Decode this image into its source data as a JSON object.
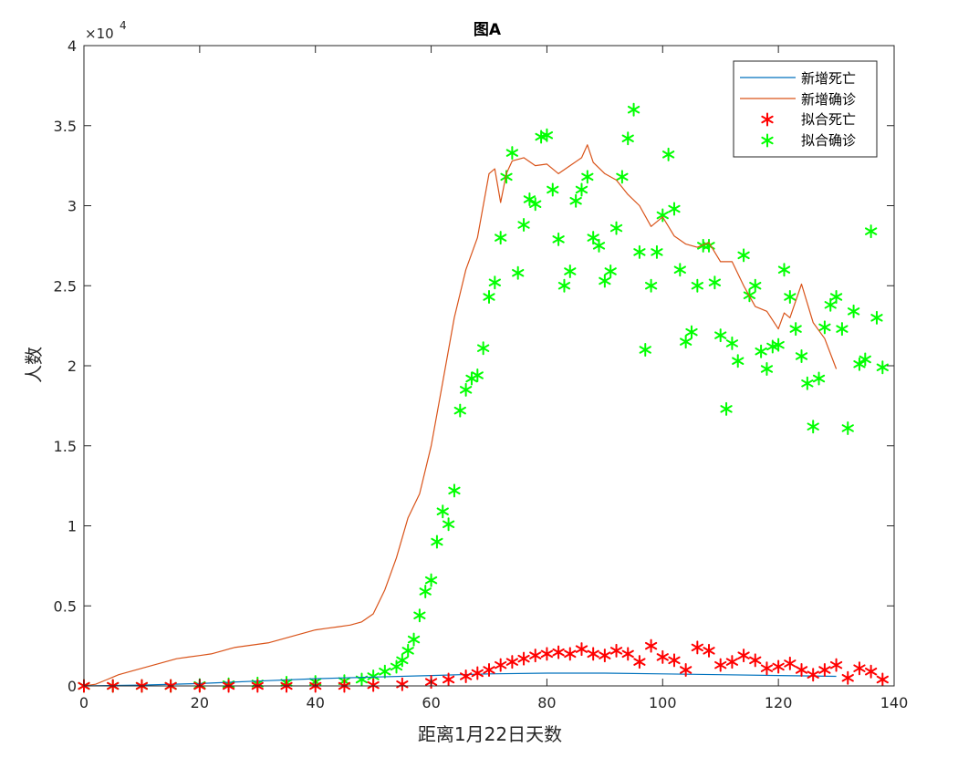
{
  "chart_data": {
    "type": "line",
    "title": "图A",
    "xlabel": "距离1月22日天数",
    "ylabel": "人数",
    "y_scale_label": "×10",
    "y_scale_exponent": "4",
    "xlim": [
      0,
      140
    ],
    "ylim": [
      0,
      40000
    ],
    "xticks": [
      0,
      20,
      40,
      60,
      80,
      100,
      120,
      140
    ],
    "yticks": [
      0,
      5000,
      10000,
      15000,
      20000,
      25000,
      30000,
      35000,
      40000
    ],
    "ytick_labels": [
      "0",
      "0.5",
      "1",
      "1.5",
      "2",
      "2.5",
      "3",
      "3.5",
      "4"
    ],
    "grid": false,
    "legend_position": "top-right",
    "series": [
      {
        "name": "新增死亡",
        "kind": "line",
        "color": "#0072BD",
        "x": [
          0,
          10,
          20,
          30,
          40,
          50,
          60,
          70,
          80,
          90,
          100,
          110,
          120,
          130
        ],
        "y": [
          0,
          50,
          150,
          300,
          450,
          550,
          650,
          750,
          800,
          800,
          750,
          700,
          650,
          600
        ]
      },
      {
        "name": "新增确诊",
        "kind": "line",
        "color": "#D95319",
        "x": [
          0,
          2,
          4,
          6,
          8,
          10,
          12,
          14,
          16,
          18,
          20,
          22,
          24,
          26,
          28,
          30,
          32,
          34,
          36,
          38,
          40,
          42,
          44,
          46,
          48,
          50,
          52,
          54,
          56,
          58,
          60,
          62,
          64,
          66,
          68,
          70,
          71,
          72,
          73,
          74,
          76,
          78,
          80,
          82,
          84,
          86,
          87,
          88,
          90,
          92,
          94,
          96,
          98,
          100,
          102,
          104,
          106,
          108,
          110,
          112,
          114,
          116,
          118,
          120,
          121,
          122,
          124,
          126,
          128,
          130
        ],
        "y": [
          0,
          100,
          400,
          700,
          900,
          1100,
          1300,
          1500,
          1700,
          1800,
          1900,
          2000,
          2200,
          2400,
          2500,
          2600,
          2700,
          2900,
          3100,
          3300,
          3500,
          3600,
          3700,
          3800,
          4000,
          4500,
          6000,
          8000,
          10500,
          12000,
          15000,
          19000,
          23000,
          26000,
          28000,
          32000,
          32300,
          30200,
          32000,
          32800,
          33000,
          32500,
          32600,
          32000,
          32500,
          33000,
          33800,
          32700,
          32000,
          31600,
          30700,
          30000,
          28700,
          29300,
          28100,
          27600,
          27400,
          27700,
          26500,
          26500,
          25000,
          23700,
          23400,
          22300,
          23300,
          23000,
          25100,
          22700,
          21700,
          19800
        ]
      },
      {
        "name": "拟合死亡",
        "kind": "markers",
        "marker": "*",
        "color": "#FF0000",
        "x": [
          0,
          5,
          10,
          15,
          20,
          25,
          30,
          35,
          40,
          45,
          50,
          55,
          60,
          63,
          66,
          68,
          70,
          72,
          74,
          76,
          78,
          80,
          82,
          84,
          86,
          88,
          90,
          92,
          94,
          96,
          98,
          100,
          102,
          104,
          106,
          108,
          110,
          112,
          114,
          116,
          118,
          120,
          122,
          124,
          126,
          128,
          130,
          132,
          134,
          136,
          138
        ],
        "y": [
          0,
          0,
          0,
          0,
          0,
          0,
          0,
          0,
          0,
          0,
          50,
          100,
          250,
          400,
          600,
          800,
          1000,
          1300,
          1500,
          1700,
          1900,
          2000,
          2100,
          2000,
          2300,
          2000,
          1900,
          2200,
          2000,
          1500,
          2500,
          1800,
          1600,
          1000,
          2400,
          2200,
          1300,
          1500,
          1900,
          1600,
          1100,
          1200,
          1400,
          1000,
          700,
          1000,
          1300,
          500,
          1100,
          900,
          400
        ]
      },
      {
        "name": "拟合确诊",
        "kind": "markers",
        "marker": "*",
        "color": "#00FF00",
        "x": [
          0,
          5,
          10,
          15,
          20,
          25,
          30,
          35,
          40,
          45,
          48,
          50,
          52,
          54,
          55,
          56,
          57,
          58,
          59,
          60,
          61,
          62,
          63,
          64,
          65,
          66,
          67,
          68,
          69,
          70,
          71,
          72,
          73,
          74,
          75,
          76,
          77,
          78,
          79,
          80,
          81,
          82,
          83,
          84,
          85,
          86,
          87,
          88,
          89,
          90,
          91,
          92,
          93,
          94,
          95,
          96,
          97,
          98,
          99,
          100,
          101,
          102,
          103,
          104,
          105,
          106,
          107,
          108,
          109,
          110,
          111,
          112,
          113,
          114,
          115,
          116,
          117,
          118,
          119,
          120,
          121,
          122,
          123,
          124,
          125,
          126,
          127,
          128,
          129,
          130,
          131,
          132,
          133,
          134,
          135,
          136,
          137,
          138
        ],
        "y": [
          0,
          0,
          0,
          0,
          50,
          100,
          150,
          200,
          250,
          300,
          400,
          600,
          900,
          1200,
          1600,
          2200,
          2900,
          4400,
          5900,
          6600,
          9000,
          10900,
          10100,
          12200,
          17200,
          18500,
          19200,
          19400,
          21100,
          24300,
          25200,
          28000,
          31800,
          33300,
          25800,
          28800,
          30400,
          30100,
          34300,
          34400,
          31000,
          27900,
          25000,
          25900,
          30300,
          31000,
          31800,
          28000,
          27500,
          25300,
          25900,
          28600,
          31800,
          34200,
          36000,
          27100,
          21000,
          25000,
          27100,
          29400,
          33200,
          29800,
          26000,
          21500,
          22100,
          25000,
          27500,
          27500,
          25200,
          21900,
          17300,
          21400,
          20300,
          26900,
          24400,
          25000,
          20900,
          19800,
          21200,
          21300,
          26000,
          24300,
          22300,
          20600,
          18900,
          16200,
          19200,
          22400,
          23800,
          24300,
          22300,
          16100,
          23400,
          20100,
          20400,
          28400,
          23000,
          19900
        ]
      }
    ]
  }
}
